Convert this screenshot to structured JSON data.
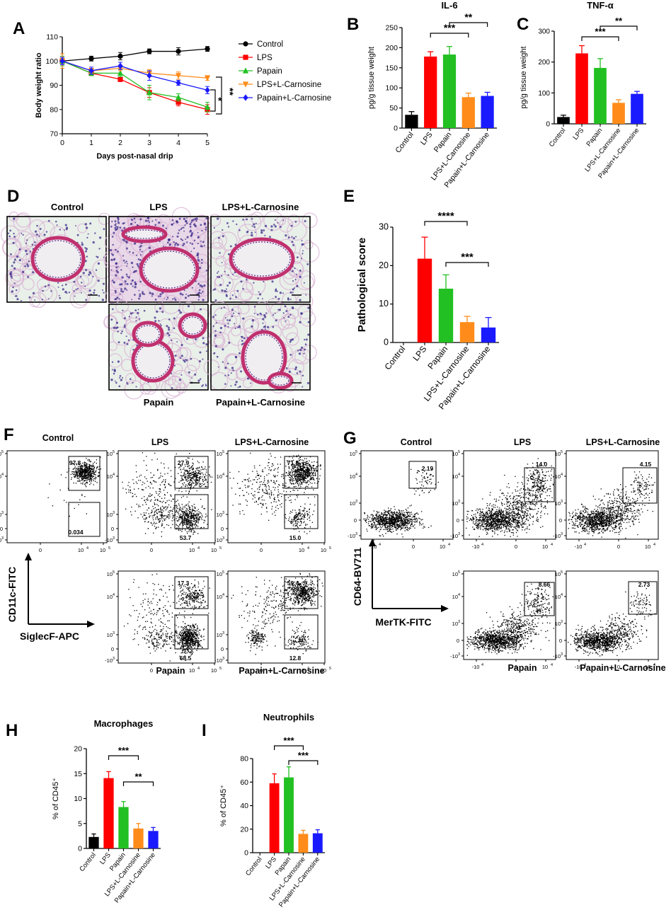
{
  "panel_letters": [
    "A",
    "B",
    "C",
    "D",
    "E",
    "F",
    "G",
    "H",
    "I"
  ],
  "colors": {
    "Control": "#000000",
    "LPS": "#ff0000",
    "Papain": "#22c022",
    "LPS+L-Carnosine": "#ff8c1a",
    "Papain+L-Carnosine": "#1a1aff",
    "histology_bg": "#e9efe9",
    "histology_stain": "#c0306e",
    "histology_nuclei": "#3a2a8a"
  },
  "panel_D": {
    "labels": [
      "Control",
      "LPS",
      "LPS+L-Carnosine",
      "Papain",
      "Papain+L-Carnosine"
    ]
  },
  "panel_F": {
    "labels": [
      "Control",
      "LPS",
      "LPS+L-Carnosine",
      "Papain",
      "Papain+L-Carnosine"
    ],
    "gate_values_upper": [
      "97.8",
      "27.9",
      "71.5",
      "17.3",
      "59.4"
    ],
    "gate_values_lower": [
      "0.034",
      "53.7",
      "15.0",
      "68.5",
      "12.8"
    ],
    "y_axis_label": "CD11c-FITC",
    "x_axis_label": "SiglecF-APC",
    "y_ticks": [
      "10^5",
      "10^4",
      "10^3",
      "0",
      "-10^3"
    ],
    "x_ticks": [
      "0",
      "10^4",
      "10^5"
    ]
  },
  "panel_G": {
    "labels": [
      "Control",
      "LPS",
      "LPS+L-Carnosine",
      "Papain",
      "Papain+L-Carnosine"
    ],
    "gate_values": [
      "2.19",
      "14.0",
      "4.15",
      "8.66",
      "2.73"
    ],
    "y_axis_label": "CD64-BV711",
    "x_axis_label": "MerTK-FITC",
    "y_ticks": [
      "10^5",
      "10^4",
      "10^3",
      "0",
      "-10^3"
    ],
    "x_ticks": [
      "-10^4",
      "0",
      "10^4"
    ]
  },
  "chart_data": [
    {
      "panel": "A",
      "type": "line",
      "xlabel": "Days post-nasal drip",
      "ylabel": "Body weight ratio",
      "x": [
        0,
        1,
        2,
        3,
        4,
        5
      ],
      "xlim": [
        0,
        5
      ],
      "ylim": [
        70,
        110
      ],
      "yticks": [
        70,
        80,
        90,
        100,
        110
      ],
      "series": [
        {
          "name": "Control",
          "values": [
            100,
            101,
            102,
            104,
            104,
            105
          ],
          "err": [
            1,
            1,
            1.5,
            1,
            1.5,
            1
          ]
        },
        {
          "name": "LPS",
          "values": [
            100,
            95,
            92.5,
            87,
            83,
            80
          ],
          "err": [
            1.5,
            1,
            1,
            2,
            1.5,
            2
          ]
        },
        {
          "name": "Papain",
          "values": [
            100,
            95,
            95,
            87,
            85,
            81
          ],
          "err": [
            2,
            1,
            1.5,
            3,
            1.5,
            2
          ]
        },
        {
          "name": "LPS+L-Carnosine",
          "values": [
            100,
            96,
            97,
            95,
            94,
            93
          ],
          "err": [
            3,
            1,
            1,
            1.5,
            1.5,
            1
          ]
        },
        {
          "name": "Papain+L-Carnosine",
          "values": [
            100,
            96,
            98,
            94,
            91,
            88
          ],
          "err": [
            1.5,
            1.5,
            1.5,
            2,
            1,
            1.5
          ]
        }
      ],
      "annotations": [
        "**",
        "*"
      ],
      "legend": "right"
    },
    {
      "panel": "B",
      "type": "bar",
      "title": "IL-6",
      "ylabel": "pg/g tissue weight",
      "categories": [
        "Control",
        "LPS",
        "Papain",
        "LPS+L-Carnosine",
        "Papain+L-Carnosine"
      ],
      "values": [
        33,
        178,
        183,
        77,
        80
      ],
      "err": [
        8,
        12,
        20,
        10,
        9
      ],
      "ylim": [
        0,
        250
      ],
      "yticks": [
        0,
        50,
        100,
        150,
        200,
        250
      ],
      "brackets": [
        {
          "from": 1,
          "to": 3,
          "label": "***"
        },
        {
          "from": 2,
          "to": 4,
          "label": "**"
        }
      ]
    },
    {
      "panel": "C",
      "type": "bar",
      "title": "TNF-α",
      "ylabel": "pg/g tissue weight",
      "categories": [
        "Control",
        "LPS",
        "Papain",
        "LPS+L-Carnosine",
        "Papain+L-Carnosine"
      ],
      "values": [
        22,
        228,
        181,
        68,
        97
      ],
      "err": [
        6,
        25,
        30,
        10,
        8
      ],
      "ylim": [
        0,
        300
      ],
      "yticks": [
        0,
        100,
        200,
        300
      ],
      "brackets": [
        {
          "from": 1,
          "to": 3,
          "label": "***"
        },
        {
          "from": 2,
          "to": 4,
          "label": "**"
        }
      ]
    },
    {
      "panel": "E",
      "type": "bar",
      "ylabel": "Pathological score",
      "categories": [
        "Control",
        "LPS",
        "Papain",
        "LPS+L-Carnosine",
        "Papain+L-Carnosine"
      ],
      "values": [
        0,
        21.8,
        14,
        5.3,
        3.9
      ],
      "err": [
        0,
        5.6,
        3.6,
        1.5,
        2.6
      ],
      "ylim": [
        0,
        30
      ],
      "yticks": [
        0,
        10,
        20,
        30
      ],
      "brackets": [
        {
          "from": 1,
          "to": 3,
          "label": "****"
        },
        {
          "from": 2,
          "to": 4,
          "label": "***"
        }
      ]
    },
    {
      "panel": "H",
      "type": "bar",
      "title": "Macrophages",
      "ylabel": "% of CD45⁺",
      "categories": [
        "Control",
        "LPS",
        "Papain",
        "LPS+L-Carnosine",
        "Papain+L-Carnosine"
      ],
      "values": [
        2.3,
        14.1,
        8.3,
        4.0,
        3.5
      ],
      "err": [
        0.6,
        1.3,
        1.1,
        1.0,
        0.7
      ],
      "ylim": [
        0,
        20
      ],
      "yticks": [
        0,
        5,
        10,
        15,
        20
      ],
      "brackets": [
        {
          "from": 1,
          "to": 3,
          "label": "***"
        },
        {
          "from": 2,
          "to": 4,
          "label": "**"
        }
      ]
    },
    {
      "panel": "I",
      "type": "bar",
      "title": "Neutrophils",
      "ylabel": "% of CD45⁺",
      "categories": [
        "Control",
        "LPS",
        "Papain",
        "LPS+L-Carnosine",
        "Papain+L-Carnosine"
      ],
      "values": [
        0,
        59,
        64,
        16,
        16.5
      ],
      "err": [
        0,
        8,
        9,
        3,
        3
      ],
      "ylim": [
        0,
        80
      ],
      "yticks": [
        0,
        20,
        40,
        60,
        80
      ],
      "brackets": [
        {
          "from": 1,
          "to": 3,
          "label": "***"
        },
        {
          "from": 2,
          "to": 4,
          "label": "***"
        }
      ]
    }
  ]
}
